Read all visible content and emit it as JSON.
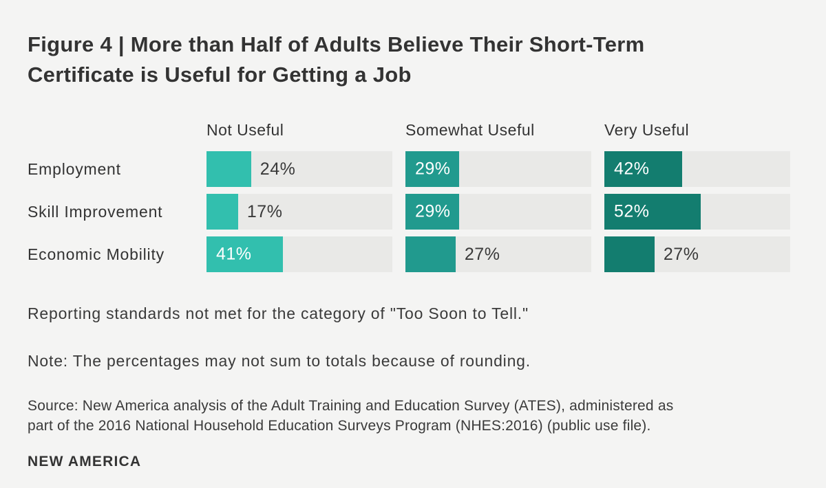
{
  "page": {
    "background": "#f4f4f3",
    "text_color": "#333333"
  },
  "title": {
    "lines": [
      "Figure 4 | More than Half of Adults Believe Their Short-Term",
      "Certificate is Useful for Getting a Job"
    ]
  },
  "chart_data": {
    "type": "bar",
    "orientation": "horizontal",
    "title": "Figure 4 | More than Half of Adults Believe Their Short-Term Certificate is Useful for Getting a Job",
    "categories": [
      "Employment",
      "Skill Improvement",
      "Economic Mobility"
    ],
    "columns": [
      "Not Useful",
      "Somewhat Useful",
      "Very Useful"
    ],
    "series": [
      {
        "name": "Not Useful",
        "color": "#32bfae",
        "values": [
          24,
          17,
          41
        ],
        "labels": [
          "24%",
          "17%",
          "41%"
        ],
        "label_inside": [
          false,
          false,
          true
        ]
      },
      {
        "name": "Somewhat Useful",
        "color": "#219a8e",
        "values": [
          29,
          29,
          27
        ],
        "labels": [
          "29%",
          "29%",
          "27%"
        ],
        "label_inside": [
          true,
          true,
          false
        ]
      },
      {
        "name": "Very Useful",
        "color": "#137d6f",
        "values": [
          42,
          52,
          27
        ],
        "labels": [
          "42%",
          "52%",
          "27%"
        ],
        "label_inside": [
          true,
          true,
          false
        ]
      }
    ],
    "xlim": [
      0,
      100
    ],
    "grid": false,
    "legend_position": "column-headers",
    "track_color": "#e9e9e7",
    "value_label_color_inside": "#ffffff",
    "value_label_color_outside": "#3a3a3a"
  },
  "notes": {
    "reporting": "Reporting standards not met for the category of \"Too Soon to Tell.\"",
    "rounding": "Note: The percentages may not sum to totals because of rounding.",
    "source_lines": [
      "Source: New America analysis of the Adult Training and Education Survey (ATES), administered as",
      "part of the 2016 National Household Education Surveys Program (NHES:2016) (public use file)."
    ]
  },
  "footer": {
    "logo_text": "NEW AMERICA"
  }
}
